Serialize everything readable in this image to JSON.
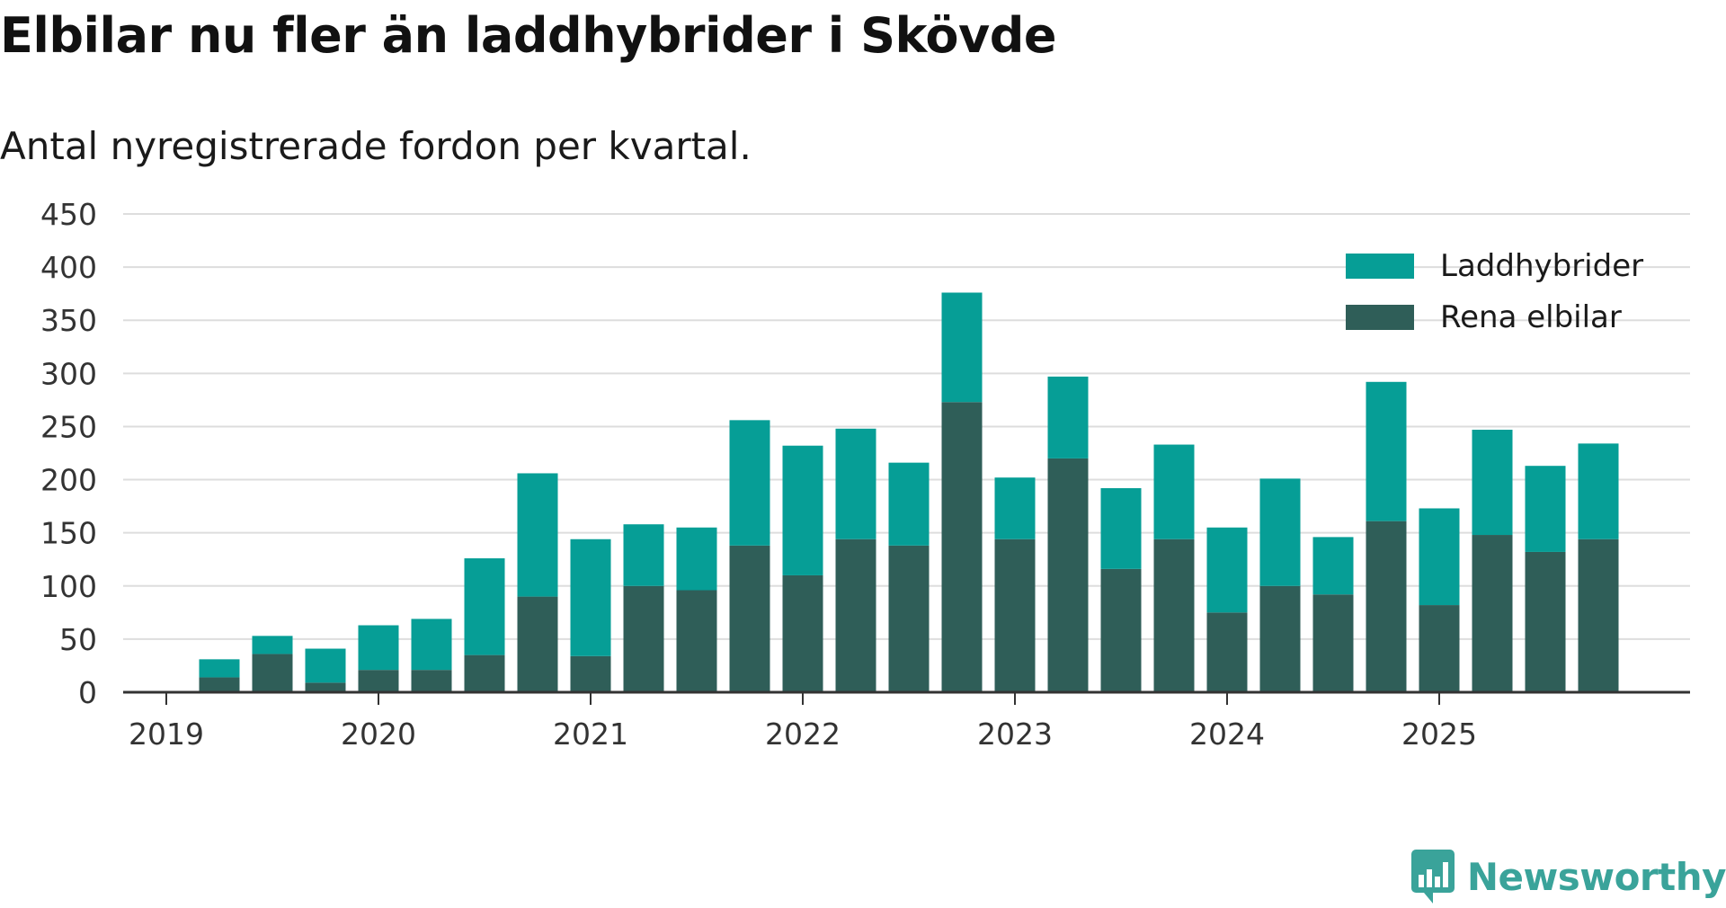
{
  "header": {
    "title": "Elbilar nu fler än laddhybrider i Skövde",
    "subtitle": "Antal nyregistrerade fordon per kvartal."
  },
  "brand": {
    "name": "Newsworthy",
    "color": "#3aa39a",
    "icon": "newsworthy-logo-icon"
  },
  "colors": {
    "laddhybrider": "#069e96",
    "rena_elbilar": "#2f5e58",
    "grid": "#dddddd",
    "axis": "#333333"
  },
  "chart_data": {
    "type": "bar",
    "stacked": true,
    "title": "Elbilar nu fler än laddhybrider i Skövde",
    "subtitle": "Antal nyregistrerade fordon per kvartal.",
    "xlabel": "",
    "ylabel": "",
    "ylim": [
      0,
      450
    ],
    "yticks": [
      0,
      50,
      100,
      150,
      200,
      250,
      300,
      350,
      400,
      450
    ],
    "categories": [
      "2019 K1",
      "2019 K2",
      "2019 K3",
      "2019 K4",
      "2020 K1",
      "2020 K2",
      "2020 K3",
      "2020 K4",
      "2021 K1",
      "2021 K2",
      "2021 K3",
      "2021 K4",
      "2022 K1",
      "2022 K2",
      "2022 K3",
      "2022 K4",
      "2023 K1",
      "2023 K2",
      "2023 K3",
      "2023 K4",
      "2024 K1",
      "2024 K2",
      "2024 K3",
      "2024 K4",
      "2025 K1",
      "2025 K2",
      "2025 K3",
      "2025 K4"
    ],
    "x_tick_labels": [
      "2019",
      "2020",
      "2021",
      "2022",
      "2023",
      "2024",
      "2025"
    ],
    "legend_position": "top-right",
    "series": [
      {
        "name": "Rena elbilar",
        "values": [
          0,
          14,
          36,
          9,
          21,
          21,
          35,
          90,
          34,
          100,
          96,
          138,
          110,
          144,
          138,
          273,
          144,
          220,
          116,
          144,
          75,
          100,
          92,
          161,
          82,
          148,
          132,
          144
        ]
      },
      {
        "name": "Laddhybrider",
        "values": [
          0,
          17,
          17,
          32,
          42,
          48,
          91,
          116,
          110,
          58,
          59,
          118,
          122,
          104,
          78,
          103,
          58,
          77,
          76,
          89,
          80,
          101,
          54,
          131,
          91,
          99,
          81,
          90
        ]
      }
    ],
    "legend": [
      "Laddhybrider",
      "Rena elbilar"
    ]
  }
}
